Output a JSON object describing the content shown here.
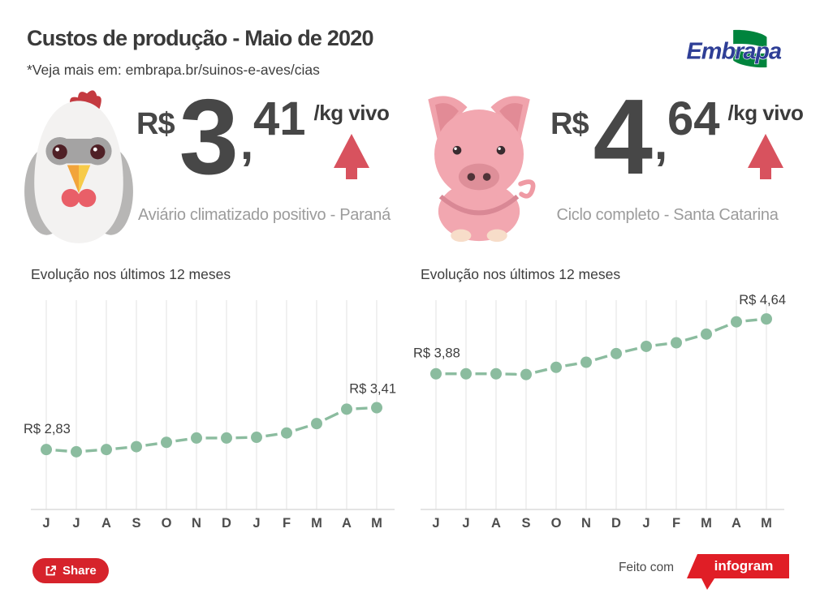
{
  "header": {
    "title": "Custos de produção - Maio de 2020",
    "subtitle": "*Veja mais em: embrapa.br/suinos-e-aves/cias",
    "logo_text": "Embrapa"
  },
  "colors": {
    "title_text": "#3a3a3a",
    "number_text": "#474747",
    "caption_text": "#9c9c9c",
    "arrow_red": "#d8525e",
    "share_red": "#d6232b",
    "infogram_red": "#e01e26",
    "chart_green": "#8bbc9f",
    "grid_line": "#e9e9e9",
    "axis_line": "#dcdcdc",
    "month_text": "#4d4d4d",
    "point_label_text": "#3e3e3e",
    "embrapa_blue": "#2e3e96",
    "embrapa_green": "#00843d"
  },
  "stats": [
    {
      "animal": "chicken",
      "currency": "R$",
      "int_part": "3",
      "comma": ",",
      "dec_part": "41",
      "unit": "/kg vivo",
      "trend": "up",
      "caption": "Aviário climatizado positivo - Paraná"
    },
    {
      "animal": "pig",
      "currency": "R$",
      "int_part": "4",
      "comma": ",",
      "dec_part": "64",
      "unit": "/kg vivo",
      "trend": "up",
      "caption": "Ciclo completo - Santa Catarina"
    }
  ],
  "chart_data": [
    {
      "type": "line",
      "title": "Evolução nos últimos 12 meses",
      "categories": [
        "J",
        "J",
        "A",
        "S",
        "O",
        "N",
        "D",
        "J",
        "F",
        "M",
        "A",
        "M"
      ],
      "values": [
        2.83,
        2.8,
        2.83,
        2.87,
        2.93,
        2.99,
        2.99,
        3.0,
        3.06,
        3.19,
        3.39,
        3.41
      ],
      "start_label": "R$ 2,83",
      "end_label": "R$ 3,41",
      "ylim": [
        2.0,
        4.9
      ],
      "grid": "vertical",
      "line_style": "dashed",
      "legend": "none"
    },
    {
      "type": "line",
      "title": "Evolução nos últimos 12 meses",
      "categories": [
        "J",
        "J",
        "A",
        "S",
        "O",
        "N",
        "D",
        "J",
        "F",
        "M",
        "A",
        "M"
      ],
      "values": [
        3.88,
        3.88,
        3.88,
        3.87,
        3.97,
        4.04,
        4.16,
        4.26,
        4.31,
        4.43,
        4.6,
        4.64
      ],
      "start_label": "R$ 3,88",
      "end_label": "R$ 4,64",
      "ylim": [
        2.0,
        4.9
      ],
      "grid": "vertical",
      "line_style": "dashed",
      "legend": "none"
    }
  ],
  "footer": {
    "share_label": "Share",
    "made_with_label": "Feito com",
    "badge_label": "infogram"
  }
}
